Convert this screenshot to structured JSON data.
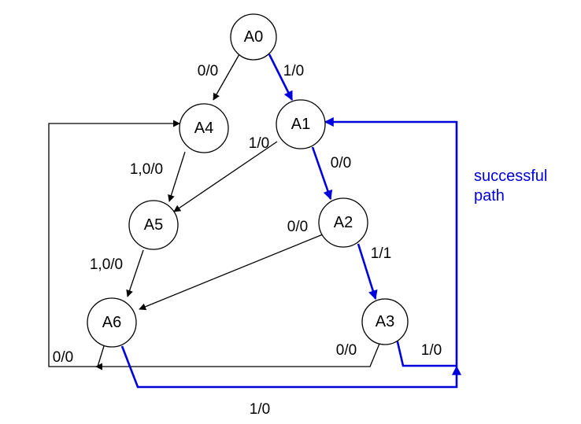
{
  "colors": {
    "normal": "#000000",
    "success": "#0000dd"
  },
  "nodes": [
    {
      "id": "A0",
      "label": "A0"
    },
    {
      "id": "A1",
      "label": "A1"
    },
    {
      "id": "A2",
      "label": "A2"
    },
    {
      "id": "A3",
      "label": "A3"
    },
    {
      "id": "A4",
      "label": "A4"
    },
    {
      "id": "A5",
      "label": "A5"
    },
    {
      "id": "A6",
      "label": "A6"
    }
  ],
  "edges": [
    {
      "from": "A0",
      "to": "A4",
      "label": "0/0",
      "success": false
    },
    {
      "from": "A0",
      "to": "A1",
      "label": "1/0",
      "success": true
    },
    {
      "from": "A1",
      "to": "A5",
      "label": "1/0",
      "success": false
    },
    {
      "from": "A1",
      "to": "A2",
      "label": "0/0",
      "success": true
    },
    {
      "from": "A4",
      "to": "A5",
      "label": "1,0/0",
      "success": false
    },
    {
      "from": "A2",
      "to": "A6",
      "label": "0/0",
      "success": false
    },
    {
      "from": "A2",
      "to": "A3",
      "label": "1/1",
      "success": true
    },
    {
      "from": "A5",
      "to": "A6",
      "label": "1,0/0",
      "success": false
    },
    {
      "from": "A3",
      "to": "A6",
      "label": "0/0",
      "success": false
    },
    {
      "from": "A6",
      "to": "A4",
      "label": "0/0",
      "success": false
    },
    {
      "from": "A3",
      "to": "A1",
      "label": "1/0",
      "success": true
    },
    {
      "from": "A6",
      "to": "A1",
      "label": "1/0",
      "success": true
    }
  ],
  "annotation": {
    "line1": "successful",
    "line2": "path"
  }
}
